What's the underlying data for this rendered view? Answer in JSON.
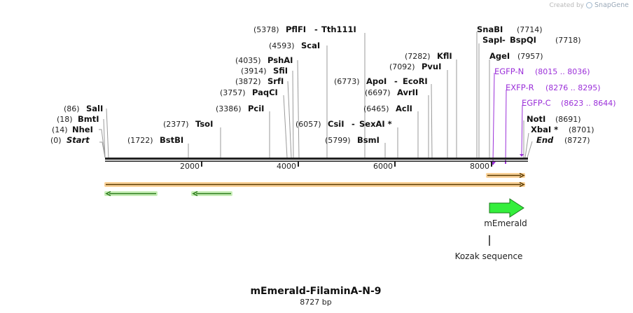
{
  "credit": {
    "prefix": "Created by",
    "brand": "SnapGene"
  },
  "plasmid": {
    "name": "mEmerald-FilaminA-N-9",
    "length_label": "8727 bp"
  },
  "ruler": {
    "ticks": [
      "2000",
      "4000",
      "6000",
      "8000"
    ]
  },
  "sites": [
    {
      "name": "Start",
      "pos": "(0)"
    },
    {
      "name": "NheI",
      "pos": "(14)"
    },
    {
      "name": "BmtI",
      "pos": "(18)"
    },
    {
      "name": "SalI",
      "pos": "(86)"
    },
    {
      "name": "BstBI",
      "pos": "(1722)"
    },
    {
      "name": "TsoI",
      "pos": "(2377)"
    },
    {
      "name": "PciI",
      "pos": "(3386)"
    },
    {
      "name": "PaqCI",
      "pos": "(3757)"
    },
    {
      "name": "SrfI",
      "pos": "(3872)"
    },
    {
      "name": "SfiI",
      "pos": "(3914)"
    },
    {
      "name": "PshAI",
      "pos": "(4035)"
    },
    {
      "name": "ScaI",
      "pos": "(4593)"
    },
    {
      "name": "PflFI",
      "pos": "(5378)",
      "sep": "-",
      "name2": "Tth111I"
    },
    {
      "name": "BsmI",
      "pos": "(5799)"
    },
    {
      "name": "CsiI",
      "pos": "(6057)",
      "sep": "-",
      "name2": "SexAI *"
    },
    {
      "name": "AclI",
      "pos": "(6465)"
    },
    {
      "name": "AvrII",
      "pos": "(6697)"
    },
    {
      "name": "ApoI",
      "pos": "(6773)",
      "sep": "-",
      "name2": "EcoRI"
    },
    {
      "name": "PvuI",
      "pos": "(7092)"
    },
    {
      "name": "KflI",
      "pos": "(7282)"
    },
    {
      "name": "SnaBI",
      "pos": "(7714)"
    },
    {
      "name": "SapI",
      "pos": "(7718)",
      "sep": "-",
      "name2": "BspQI"
    },
    {
      "name": "AgeI",
      "pos": "(7957)"
    },
    {
      "name": "NotI",
      "pos": "(8691)"
    },
    {
      "name": "XbaI *",
      "pos": "(8701)"
    },
    {
      "name": "End",
      "pos": "(8727)"
    }
  ],
  "primers": [
    {
      "name": "EGFP-N",
      "range": "(8015 .. 8036)"
    },
    {
      "name": "EXFP-R",
      "range": "(8276 .. 8295)"
    },
    {
      "name": "EGFP-C",
      "range": "(8623 .. 8644)"
    }
  ],
  "features": {
    "gene": "mEmerald",
    "kozak": "Kozak sequence"
  },
  "colors": {
    "backbone": "#222222",
    "primer": "#9b30d9",
    "orf": "#f5a623",
    "arrow": "#2ecc40",
    "text": "#222222"
  }
}
